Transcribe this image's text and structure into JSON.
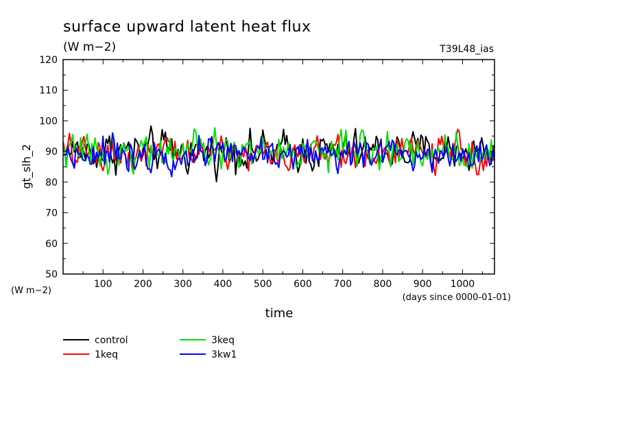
{
  "chart_data": {
    "type": "line",
    "title": "surface upward latent heat flux",
    "subtitle": "(W m−2)",
    "tag": "T39L48_ias",
    "xlabel": "time",
    "xunits": "(days since 0000-01-01)",
    "ylabel": "gt_slh_2",
    "yunits": "(W m−2)",
    "xlim": [
      0,
      1080
    ],
    "ylim": [
      50,
      120
    ],
    "x_ticks": [
      100,
      200,
      300,
      400,
      500,
      600,
      700,
      800,
      900,
      1000
    ],
    "y_ticks": [
      50,
      60,
      70,
      80,
      90,
      100,
      110,
      120
    ],
    "grid": false,
    "legend_position": "bottom-left",
    "series": [
      {
        "name": "control",
        "color": "#000000",
        "mean": 90,
        "min": 77.5,
        "max": 101.5,
        "x_step": 4
      },
      {
        "name": "1keq",
        "color": "#ff0000",
        "mean": 89.5,
        "min": 79.5,
        "max": 100,
        "x_step": 4
      },
      {
        "name": "3keq",
        "color": "#00e000",
        "mean": 90,
        "min": 79,
        "max": 100.5,
        "x_step": 4
      },
      {
        "name": "3kw1",
        "color": "#0000ff",
        "mean": 89.5,
        "min": 80.5,
        "max": 100,
        "x_step": 4
      }
    ]
  }
}
